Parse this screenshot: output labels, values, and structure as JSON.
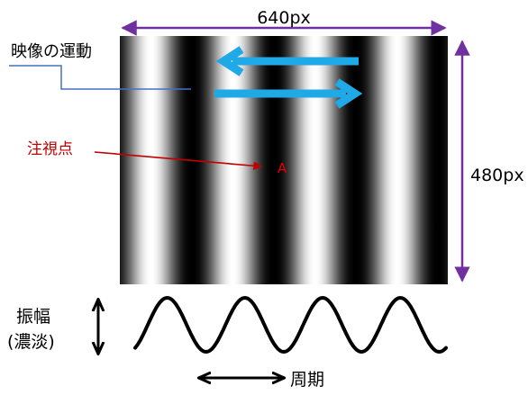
{
  "labels": {
    "width_label": "640px",
    "height_label": "480px",
    "motion_label": "映像の運動",
    "fixation_label": "注視点",
    "fixation_marker": "A",
    "amplitude_label_line1": "振幅",
    "amplitude_label_line2": "(濃淡)",
    "period_label": "周期"
  },
  "colors": {
    "dimension": "#7030a0",
    "motion_arrow": "#1fa9e6",
    "motion_label_line": "#4472c4",
    "fixation": "#c00000",
    "stripe_dark": "#000000",
    "stripe_light": "#ffffff",
    "wave": "#000000"
  },
  "grating": {
    "cycles": 4,
    "profile": "sine"
  },
  "wave": {
    "cycles": 4
  }
}
